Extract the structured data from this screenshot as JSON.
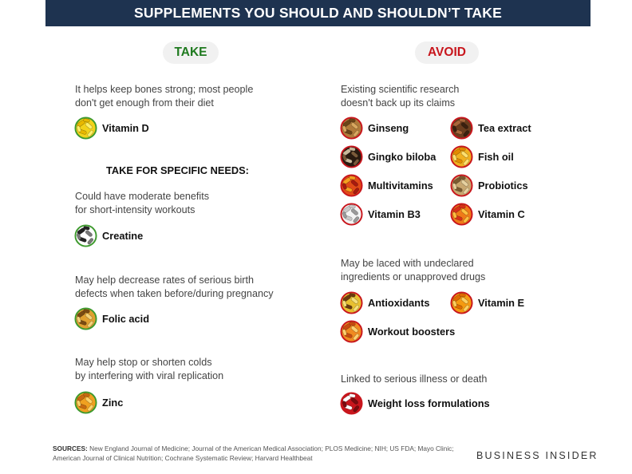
{
  "title": "SUPPLEMENTS YOU SHOULD AND SHOULDN’T TAKE",
  "take": {
    "heading": "TAKE",
    "general": {
      "desc": [
        "It helps keep bones strong; most people",
        "don't get enough from their diet"
      ],
      "items": [
        {
          "name": "Vitamin D",
          "icon": "capsule-yellow-icon"
        }
      ]
    },
    "specific_heading": "TAKE FOR SPECIFIC NEEDS:",
    "groups": [
      {
        "desc": [
          "Could have moderate benefits",
          "for short-intensity workouts"
        ],
        "items": [
          {
            "name": "Creatine",
            "icon": "capsule-bw-icon"
          }
        ]
      },
      {
        "desc": [
          "May help decrease rates of serious birth",
          "defects when taken before/during pregnancy"
        ],
        "items": [
          {
            "name": "Folic acid",
            "icon": "tablet-icon"
          }
        ]
      },
      {
        "desc": [
          "May help stop or shorten colds",
          "by interfering with viral replication"
        ],
        "items": [
          {
            "name": "Zinc",
            "icon": "capsule-orange-icon"
          }
        ]
      }
    ]
  },
  "avoid": {
    "heading": "AVOID",
    "groups": [
      {
        "desc": [
          "Existing scientific research",
          "doesn't back up its claims"
        ],
        "items": [
          {
            "name": "Ginseng",
            "icon": "ginseng-icon"
          },
          {
            "name": "Tea extract",
            "icon": "tea-extract-icon"
          },
          {
            "name": "Gingko biloba",
            "icon": "gingko-icon"
          },
          {
            "name": "Fish oil",
            "icon": "fish-oil-icon"
          },
          {
            "name": "Multivitamins",
            "icon": "multivitamin-icon"
          },
          {
            "name": "Probiotics",
            "icon": "probiotics-icon"
          },
          {
            "name": "Vitamin B3",
            "icon": "vitamin-b3-icon"
          },
          {
            "name": "Vitamin C",
            "icon": "vitamin-c-icon"
          }
        ]
      },
      {
        "desc": [
          "May be laced with undeclared",
          "ingredients or unapproved drugs"
        ],
        "items": [
          {
            "name": "Antioxidants",
            "icon": "antioxidants-icon"
          },
          {
            "name": "Vitamin E",
            "icon": "vitamin-e-icon"
          },
          {
            "name": "Workout boosters",
            "icon": "workout-boosters-icon"
          }
        ]
      },
      {
        "desc": [
          "Linked to serious illness or death"
        ],
        "items": [
          {
            "name": "Weight loss formulations",
            "icon": "weight-loss-icon"
          }
        ]
      }
    ]
  },
  "sources": {
    "label": "SOURCES:",
    "text": "New England Journal of Medicine; Journal of the American Medical Association; PLOS Medicine; NIH; US FDA; Mayo Clinic; American Journal of Clinical Nutrition; Cochrane Systematic Review; Harvard Healthbeat"
  },
  "brand": "BUSINESS INSIDER",
  "colors": {
    "banner": "#1e3350",
    "take": "#1f7a1f",
    "avoid": "#c8161d",
    "take_ring": "#3e9a2e",
    "avoid_ring": "#c8161d"
  }
}
